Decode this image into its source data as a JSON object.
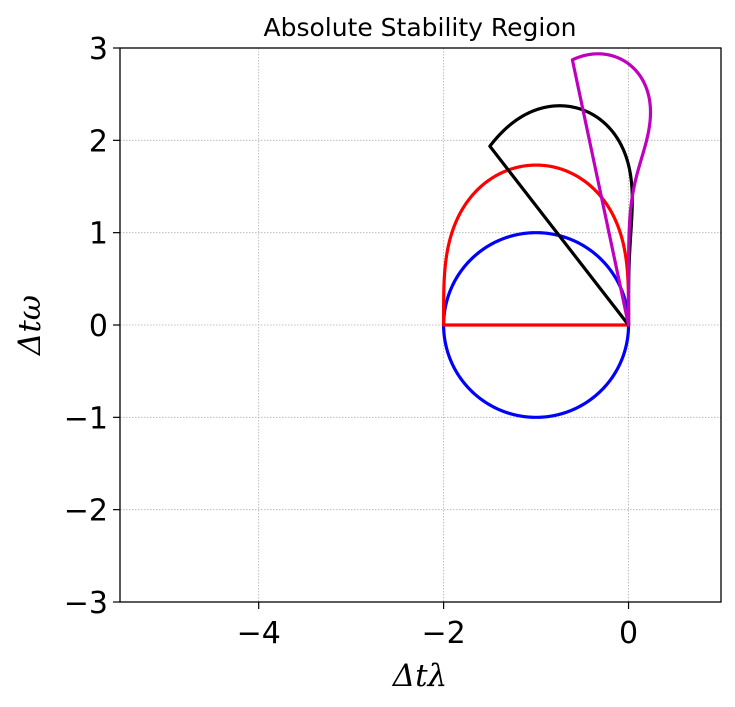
{
  "chart_data": {
    "type": "line",
    "title": "Absolute Stability Region",
    "xlabel": "Δtλ",
    "ylabel": "Δtω",
    "xlim": [
      -5.5,
      1
    ],
    "ylim": [
      -3,
      3
    ],
    "xticks": [
      -4,
      -2,
      0
    ],
    "xtick_labels": [
      "−4",
      "−2",
      "0"
    ],
    "yticks": [
      -3,
      -2,
      -1,
      0,
      1,
      2,
      3
    ],
    "ytick_labels": [
      "−3",
      "−2",
      "−1",
      "0",
      "1",
      "2",
      "3"
    ],
    "grid": true,
    "curve_samples": 400,
    "series": [
      {
        "color": "#0000ff",
        "rk_order": 1
      },
      {
        "color": "#ff0000",
        "rk_order": 2
      },
      {
        "color": "#000000",
        "rk_order": 3
      },
      {
        "color": "#bf00bf",
        "rk_order": 4
      }
    ]
  }
}
